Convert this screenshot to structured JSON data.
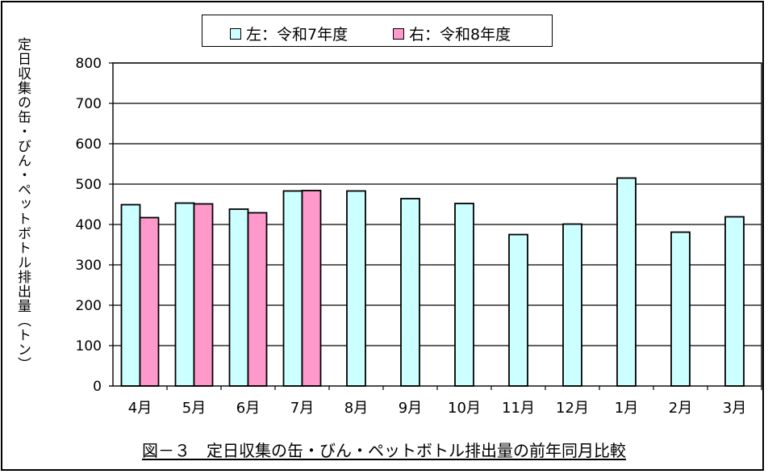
{
  "chart_data": {
    "type": "bar",
    "title": "図－３　定日収集の缶・びん・ペットボトル排出量の前年同月比較",
    "ylabel": "定日収集の缶・びん・ペットボトル排出量（トン）",
    "xlabel": "",
    "ylim": [
      0,
      800
    ],
    "yticks": [
      "0",
      "100",
      "200",
      "300",
      "400",
      "500",
      "600",
      "700",
      "800"
    ],
    "grid": true,
    "legend_position": "top-center",
    "categories": [
      "4月",
      "5月",
      "6月",
      "7月",
      "8月",
      "9月",
      "10月",
      "11月",
      "12月",
      "1月",
      "2月",
      "3月"
    ],
    "series": [
      {
        "name": "左：令和7年度",
        "color": "#ccffff",
        "values": [
          449,
          453,
          438,
          483,
          483,
          464,
          452,
          375,
          401,
          515,
          381,
          419
        ]
      },
      {
        "name": "右：令和8年度",
        "color": "#ff99cc",
        "values": [
          417,
          451,
          429,
          484,
          null,
          null,
          null,
          null,
          null,
          null,
          null,
          null
        ]
      }
    ]
  }
}
